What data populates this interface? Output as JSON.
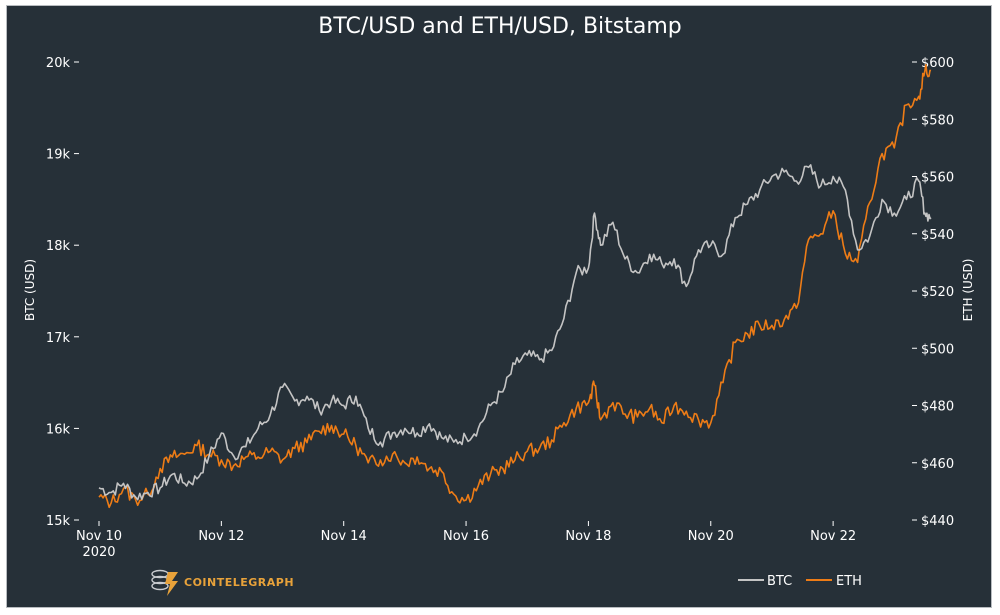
{
  "chart_data": {
    "type": "line",
    "title": "BTC/USD and ETH/USD, Bitstamp",
    "ylabel": "BTC (USD)",
    "y2label": "ETH (USD)",
    "ylim": [
      15000,
      20000
    ],
    "y2lim": [
      440,
      600
    ],
    "xlim": [
      10.0,
      23.6
    ],
    "yticks": [
      {
        "v": 20000,
        "label": "20k"
      },
      {
        "v": 19000,
        "label": "19k"
      },
      {
        "v": 18000,
        "label": "18k"
      },
      {
        "v": 17000,
        "label": "17k"
      },
      {
        "v": 16000,
        "label": "16k"
      },
      {
        "v": 15000,
        "label": "15k"
      }
    ],
    "y2ticks": [
      {
        "v": 600,
        "label": "$600"
      },
      {
        "v": 580,
        "label": "$580"
      },
      {
        "v": 560,
        "label": "$560"
      },
      {
        "v": 540,
        "label": "$540"
      },
      {
        "v": 520,
        "label": "$520"
      },
      {
        "v": 500,
        "label": "$500"
      },
      {
        "v": 480,
        "label": "$480"
      },
      {
        "v": 460,
        "label": "$460"
      },
      {
        "v": 440,
        "label": "$440"
      }
    ],
    "xticks": [
      {
        "v": 10,
        "label": "Nov 10",
        "sub": "2020"
      },
      {
        "v": 12,
        "label": "Nov 12",
        "sub": ""
      },
      {
        "v": 14,
        "label": "Nov 14",
        "sub": ""
      },
      {
        "v": 16,
        "label": "Nov 16",
        "sub": ""
      },
      {
        "v": 18,
        "label": "Nov 18",
        "sub": ""
      },
      {
        "v": 20,
        "label": "Nov 20",
        "sub": ""
      },
      {
        "v": 22,
        "label": "Nov 22",
        "sub": ""
      }
    ],
    "series": [
      {
        "name": "BTC",
        "axis": "left",
        "color": "#c4c4c4",
        "x": [
          10.0,
          10.2,
          10.4,
          10.6,
          10.8,
          11.0,
          11.2,
          11.4,
          11.6,
          11.8,
          12.0,
          12.2,
          12.4,
          12.6,
          12.8,
          13.0,
          13.2,
          13.4,
          13.6,
          13.8,
          14.0,
          14.2,
          14.4,
          14.6,
          14.8,
          15.0,
          15.2,
          15.4,
          15.6,
          15.8,
          16.0,
          16.2,
          16.4,
          16.6,
          16.8,
          17.0,
          17.2,
          17.4,
          17.6,
          17.8,
          18.0,
          18.1,
          18.2,
          18.4,
          18.6,
          18.8,
          19.0,
          19.2,
          19.4,
          19.6,
          19.8,
          20.0,
          20.2,
          20.4,
          20.6,
          20.8,
          21.0,
          21.2,
          21.4,
          21.6,
          21.8,
          22.0,
          22.2,
          22.4,
          22.6,
          22.8,
          23.0,
          23.2,
          23.4,
          23.5,
          23.6
        ],
        "values": [
          15350,
          15300,
          15400,
          15250,
          15300,
          15350,
          15500,
          15400,
          15450,
          15700,
          15950,
          15700,
          15800,
          16000,
          16150,
          16450,
          16300,
          16350,
          16200,
          16300,
          16250,
          16350,
          16000,
          15850,
          15950,
          16000,
          15950,
          16050,
          15900,
          15850,
          15900,
          16000,
          16250,
          16400,
          16700,
          16800,
          16750,
          16850,
          17200,
          17700,
          17750,
          18350,
          18000,
          18250,
          17850,
          17700,
          17900,
          17800,
          17850,
          17550,
          17950,
          18000,
          17900,
          18300,
          18450,
          18600,
          18750,
          18800,
          18700,
          18850,
          18650,
          18750,
          18600,
          17950,
          18100,
          18500,
          18350,
          18500,
          18700,
          18350,
          18300
        ]
      },
      {
        "name": "ETH",
        "axis": "right",
        "color": "#ee7c16",
        "x": [
          10.0,
          10.2,
          10.4,
          10.6,
          10.8,
          11.0,
          11.2,
          11.4,
          11.6,
          11.8,
          12.0,
          12.2,
          12.4,
          12.6,
          12.8,
          13.0,
          13.2,
          13.4,
          13.6,
          13.8,
          14.0,
          14.2,
          14.4,
          14.6,
          14.8,
          15.0,
          15.2,
          15.4,
          15.6,
          15.8,
          16.0,
          16.2,
          16.4,
          16.6,
          16.8,
          17.0,
          17.2,
          17.4,
          17.6,
          17.8,
          18.0,
          18.1,
          18.2,
          18.4,
          18.6,
          18.8,
          19.0,
          19.2,
          19.4,
          19.6,
          19.8,
          20.0,
          20.2,
          20.4,
          20.6,
          20.8,
          21.0,
          21.2,
          21.4,
          21.6,
          21.8,
          22.0,
          22.2,
          22.4,
          22.6,
          22.8,
          23.0,
          23.2,
          23.4,
          23.5,
          23.6
        ],
        "values": [
          448,
          446,
          451,
          447,
          449,
          458,
          462,
          463,
          466,
          463,
          461,
          459,
          462,
          462,
          464,
          461,
          465,
          467,
          471,
          473,
          470,
          466,
          460,
          461,
          463,
          460,
          462,
          458,
          457,
          449,
          447,
          452,
          456,
          458,
          461,
          464,
          465,
          468,
          474,
          479,
          481,
          487,
          475,
          481,
          477,
          476,
          479,
          474,
          480,
          478,
          475,
          474,
          488,
          502,
          505,
          508,
          508,
          510,
          514,
          538,
          540,
          548,
          533,
          530,
          551,
          568,
          570,
          585,
          588,
          597,
          597
        ]
      }
    ],
    "legend": [
      "BTC",
      "ETH"
    ],
    "legend_position": "bottom-right",
    "brand": "COINTELEGRAPH",
    "background": "#263038"
  }
}
